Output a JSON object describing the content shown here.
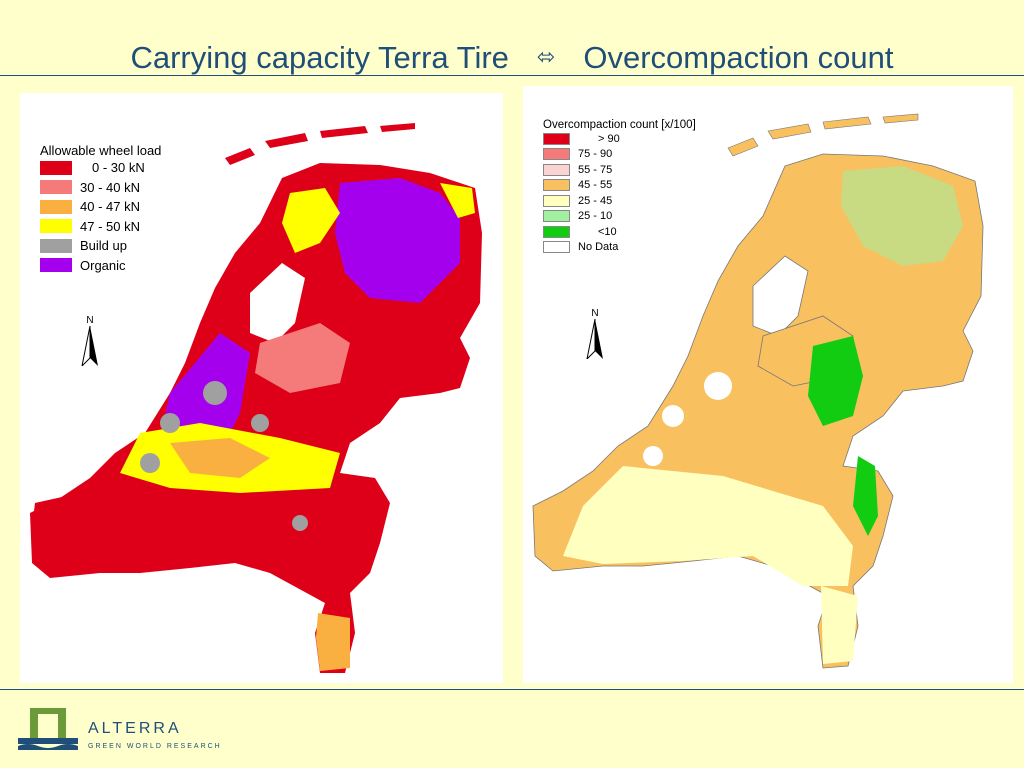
{
  "slide": {
    "title_left": "Carrying capacity Terra Tire",
    "title_arrow": "⬄",
    "title_right": "Overcompaction count"
  },
  "left_map": {
    "legend_title": "Allowable wheel load",
    "legend_items": [
      {
        "label": "0 - 30 kN",
        "color": "#dd0018"
      },
      {
        "label": "30 - 40 kN",
        "color": "#f57a7a"
      },
      {
        "label": "40 - 47 kN",
        "color": "#f9b040"
      },
      {
        "label": "47 - 50 kN",
        "color": "#ffff00"
      },
      {
        "label": "Build up",
        "color": "#a0a0a0"
      },
      {
        "label": "Organic",
        "color": "#a500ee"
      }
    ],
    "north_label": "N"
  },
  "right_map": {
    "legend_title": "Overcompaction count [x/100]",
    "legend_items": [
      {
        "label": "> 90",
        "color": "#dd0018"
      },
      {
        "label": "75 - 90",
        "color": "#f57a7a"
      },
      {
        "label": "55 - 75",
        "color": "#fcd3d3"
      },
      {
        "label": "45 - 55",
        "color": "#f9c060"
      },
      {
        "label": "25 - 45",
        "color": "#ffffc0"
      },
      {
        "label": "25 - 10",
        "color": "#a0f0a0"
      },
      {
        "label": "<10",
        "color": "#11cc11"
      },
      {
        "label": "No Data",
        "color": "#ffffff"
      }
    ],
    "north_label": "N"
  },
  "logo": {
    "name": "ALTERRA",
    "tagline": "GREEN WORLD RESEARCH",
    "color": "#1f4e79",
    "accent": "#6a9a3a"
  }
}
